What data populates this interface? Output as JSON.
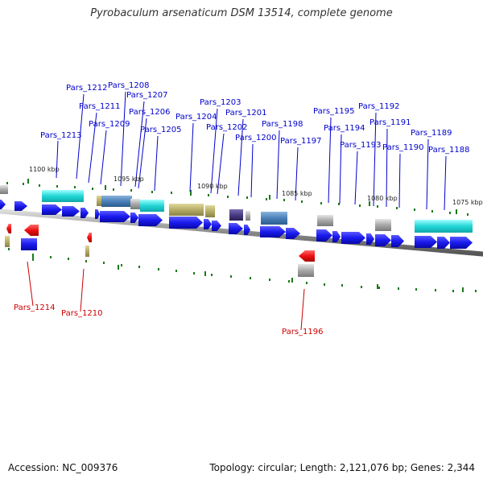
{
  "title": "Pyrobaculum arsenaticum DSM 13514, complete genome",
  "footer": {
    "accession": "Accession: NC_009376",
    "summary": "Topology: circular; Length: 2,121,076 bp; Genes: 2,344"
  },
  "colors": {
    "cds_forward": "#1a1aee",
    "cds_reverse": "#ee1111",
    "label_forward": "#0000cc",
    "label_reverse": "#cc0000",
    "backbone": "#888888",
    "tick_mark": "#1a7a1a",
    "cyan_domain": "#22d6d6",
    "steelblue_domain": "#4a80b8",
    "khaki_domain": "#b5ac66",
    "grey_domain": "#a8a8a8",
    "purple_domain": "#4a3c82"
  },
  "scale_labels": [
    "1100 kbp",
    "1095 kbp",
    "1090 kbp",
    "1085 kbp",
    "1080 kbp",
    "1075 kbp"
  ],
  "forward_genes": [
    "Pars_1213",
    "Pars_1212",
    "Pars_1211",
    "Pars_1209",
    "Pars_1208",
    "Pars_1207",
    "Pars_1206",
    "Pars_1205",
    "Pars_1204",
    "Pars_1203",
    "Pars_1202",
    "Pars_1201",
    "Pars_1200",
    "Pars_1198",
    "Pars_1197",
    "Pars_1195",
    "Pars_1194",
    "Pars_1193",
    "Pars_1192",
    "Pars_1191",
    "Pars_1190",
    "Pars_1189",
    "Pars_1188"
  ],
  "reverse_genes": [
    "Pars_1214",
    "Pars_1210",
    "Pars_1196"
  ]
}
